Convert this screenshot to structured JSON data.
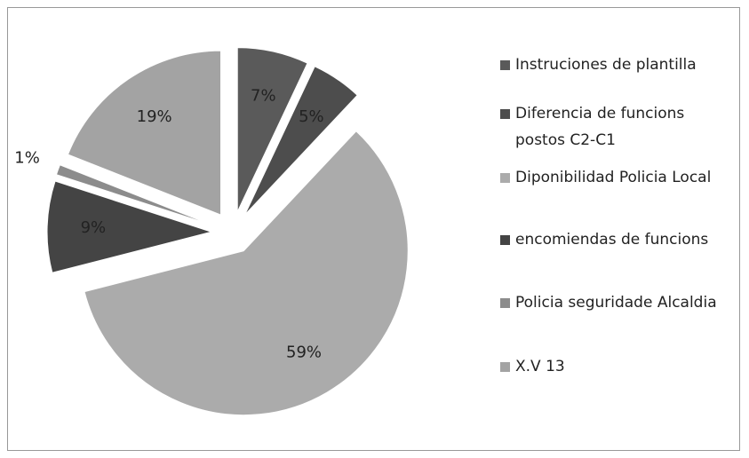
{
  "chart_data": {
    "type": "pie",
    "categories": [
      "Instruciones de plantilla",
      "Diferencia de funcions postos C2-C1",
      "Diponibilidad Policia Local",
      "encomiendas de funcions",
      "Policia seguridade Alcaldia",
      "X.V 13"
    ],
    "values": [
      7,
      5,
      59,
      9,
      1,
      19
    ],
    "value_labels": [
      "7%",
      "5%",
      "59%",
      "9%",
      "1%",
      "19%"
    ],
    "colors": [
      "#5a5a5a",
      "#4d4d4d",
      "#ababab",
      "#444444",
      "#8c8c8c",
      "#a3a3a3"
    ],
    "exploded": true,
    "legend": "right"
  }
}
